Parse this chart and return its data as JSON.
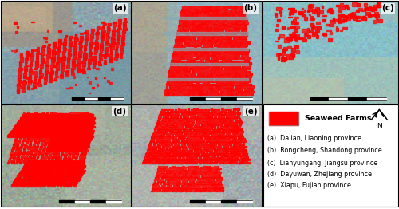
{
  "figure_bg": "#ffffff",
  "label_fontsize": 7.5,
  "legend_title": "Seaweed Farms",
  "legend_fontsize": 6.8,
  "desc_fontsize": 5.8,
  "descriptions": [
    "(a)  Dalian, Liaoning province",
    "(b)  Rongcheng, Shandong province",
    "(c)  Lianyungang, Jiangsu province",
    "(d)  Dayuwan, Zhejiang province",
    "(e)  Xiapu, Fujian province"
  ],
  "panel_positions": {
    "a": [
      0.002,
      0.505,
      0.325,
      0.49
    ],
    "b": [
      0.33,
      0.505,
      0.325,
      0.49
    ],
    "c": [
      0.658,
      0.505,
      0.34,
      0.49
    ],
    "d": [
      0.002,
      0.01,
      0.325,
      0.49
    ],
    "e": [
      0.33,
      0.01,
      0.325,
      0.49
    ],
    "legend": [
      0.66,
      0.01,
      0.338,
      0.49
    ]
  }
}
